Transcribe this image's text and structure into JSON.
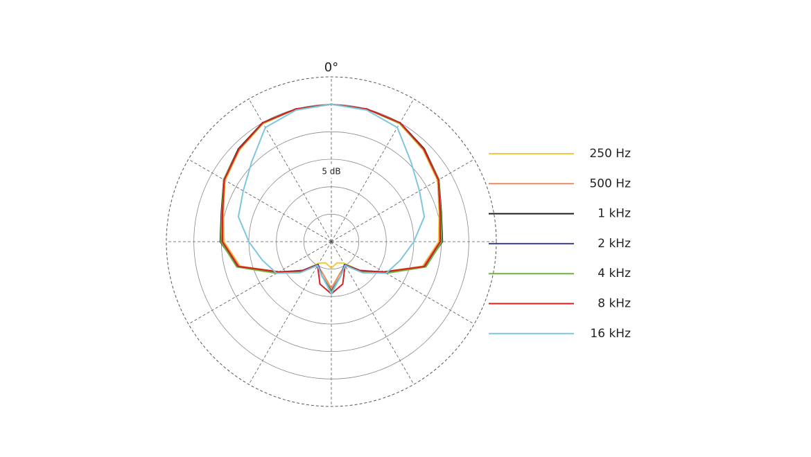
{
  "chart_data": {
    "type": "polar",
    "theta": [
      0,
      15,
      30,
      45,
      60,
      75,
      90,
      105,
      120,
      135,
      150,
      165,
      180,
      195,
      210,
      225,
      240,
      255,
      270,
      285,
      300,
      315,
      330,
      345
    ],
    "rlim": [
      0,
      30
    ],
    "rticks": [
      {
        "value": 5,
        "label": "5 dB"
      },
      10,
      15,
      20,
      25,
      30
    ],
    "thetaticks": [
      {
        "value": 0,
        "label": "0°"
      },
      30,
      60,
      90,
      120,
      150,
      180,
      210,
      240,
      270,
      300,
      330
    ],
    "series": [
      {
        "name": "250 Hz",
        "color": "#f2c83c",
        "values": [
          25,
          25,
          24.8,
          23.6,
          22.3,
          20.3,
          19.5,
          17.2,
          11,
          7.5,
          4.5,
          4,
          4.8,
          4,
          4.5,
          7.5,
          11,
          17.2,
          19.5,
          20.3,
          22.3,
          23.6,
          24.8,
          25
        ]
      },
      {
        "name": "500 Hz",
        "color": "#ef8a5a",
        "values": [
          25,
          25,
          24.9,
          23.7,
          22.4,
          20.4,
          19.7,
          17.3,
          11,
          7.5,
          5,
          6,
          8.5,
          6,
          5,
          7.5,
          11,
          17.3,
          19.7,
          20.4,
          22.4,
          23.7,
          24.9,
          25
        ]
      },
      {
        "name": "1 kHz",
        "color": "#1a1a1a",
        "values": [
          25,
          25,
          25,
          23.9,
          22.6,
          20.7,
          20.2,
          17.6,
          11.2,
          7.6,
          5,
          6.5,
          9,
          6.5,
          5,
          7.6,
          11.2,
          17.6,
          20.2,
          20.7,
          22.6,
          23.9,
          25,
          25
        ]
      },
      {
        "name": "2 kHz",
        "color": "#3b3b9a",
        "values": [
          25,
          25,
          24.9,
          23.8,
          22.5,
          20.5,
          20,
          17.5,
          11.1,
          7.4,
          4.8,
          6.5,
          9,
          6.5,
          4.8,
          7.4,
          11.1,
          17.5,
          20,
          20.5,
          22.5,
          23.8,
          24.9,
          25
        ]
      },
      {
        "name": "4 kHz",
        "color": "#6db33f",
        "values": [
          25,
          25,
          24.9,
          23.8,
          22.6,
          20.6,
          20.1,
          17.8,
          11.5,
          7.8,
          5,
          6.5,
          9.2,
          6.5,
          5,
          7.8,
          11.5,
          17.8,
          20.1,
          20.6,
          22.6,
          23.8,
          24.9,
          25
        ]
      },
      {
        "name": "8 kHz",
        "color": "#d81e1e",
        "values": [
          25,
          25,
          25,
          23.8,
          22.5,
          20.5,
          19.8,
          17.5,
          11,
          7.5,
          5,
          8,
          9.5,
          8,
          5,
          7.5,
          11,
          17.5,
          19.8,
          20.5,
          22.5,
          23.8,
          25,
          25
        ]
      },
      {
        "name": "16 kHz",
        "color": "#7cc6e0",
        "values": [
          25,
          24.8,
          24,
          20.5,
          18.5,
          17.5,
          15,
          13,
          11.5,
          8,
          5,
          6.5,
          9.5,
          6.5,
          5,
          8,
          11.5,
          13,
          15,
          17.5,
          18.5,
          20.5,
          24,
          24.8
        ]
      }
    ]
  }
}
